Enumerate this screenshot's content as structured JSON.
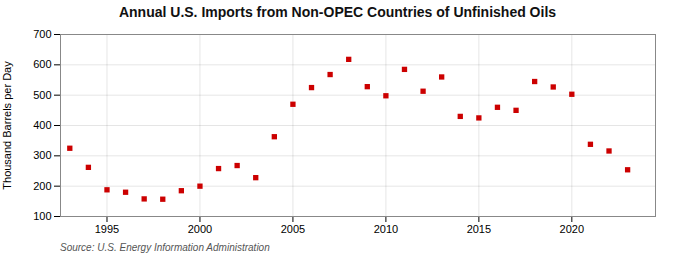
{
  "chart_data": {
    "type": "scatter",
    "title": "Annual U.S. Imports from Non-OPEC Countries of Unfinished Oils",
    "ylabel": "Thousand Barrels per Day",
    "annotations": [
      "Source: U.S. Energy Information Administration"
    ],
    "x": [
      1993,
      1994,
      1995,
      1996,
      1997,
      1998,
      1999,
      2000,
      2001,
      2002,
      2003,
      2004,
      2005,
      2006,
      2007,
      2008,
      2009,
      2010,
      2011,
      2012,
      2013,
      2014,
      2015,
      2016,
      2017,
      2018,
      2019,
      2020,
      2021,
      2022,
      2023
    ],
    "values": [
      325,
      262,
      188,
      180,
      158,
      157,
      185,
      200,
      258,
      268,
      228,
      363,
      470,
      525,
      568,
      618,
      528,
      498,
      585,
      513,
      560,
      430,
      425,
      460,
      450,
      545,
      527,
      503,
      338,
      316,
      254
    ],
    "color": "#cc0000",
    "marker": "square",
    "xlim": [
      1992.5,
      2024.5
    ],
    "xticks": [
      1995,
      2000,
      2005,
      2010,
      2015,
      2020
    ],
    "ylim": [
      100,
      700
    ],
    "yticks": [
      100,
      200,
      300,
      400,
      500,
      600,
      700
    ],
    "grid": true
  }
}
